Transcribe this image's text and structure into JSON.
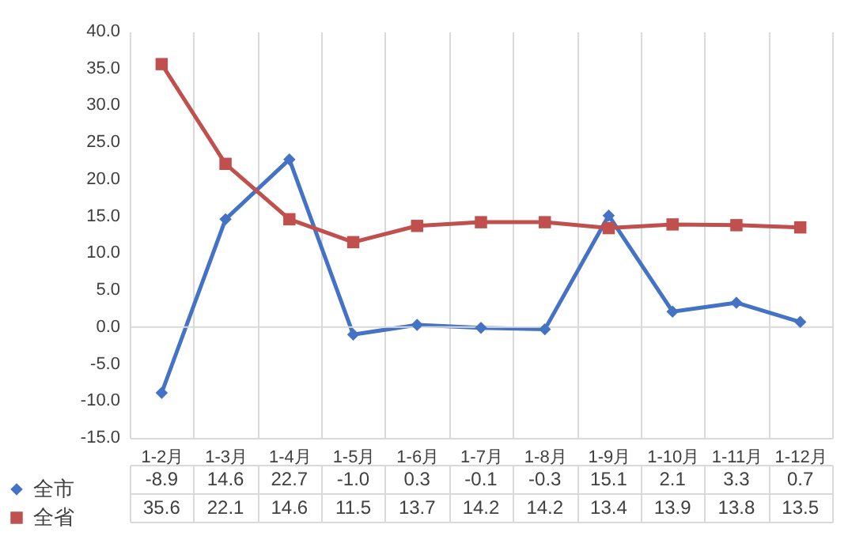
{
  "chart_data": {
    "type": "line",
    "categories": [
      "1-2月",
      "1-3月",
      "1-4月",
      "1-5月",
      "1-6月",
      "1-7月",
      "1-8月",
      "1-9月",
      "1-10月",
      "1-11月",
      "1-12月"
    ],
    "series": [
      {
        "name": "全市",
        "color": "#4472c4",
        "marker": "diamond",
        "values": [
          -8.9,
          14.6,
          22.7,
          -1.0,
          0.3,
          -0.1,
          -0.3,
          15.1,
          2.1,
          3.3,
          0.7
        ],
        "value_labels": [
          "-8.9",
          "14.6",
          "22.7",
          "-1.0",
          "0.3",
          "-0.1",
          "-0.3",
          "15.1",
          "2.1",
          "3.3",
          "0.7"
        ]
      },
      {
        "name": "全省",
        "color": "#c0504d",
        "marker": "square",
        "values": [
          35.6,
          22.1,
          14.6,
          11.5,
          13.7,
          14.2,
          14.2,
          13.4,
          13.9,
          13.8,
          13.5
        ],
        "value_labels": [
          "35.6",
          "22.1",
          "14.6",
          "11.5",
          "13.7",
          "14.2",
          "14.2",
          "13.4",
          "13.9",
          "13.8",
          "13.5"
        ]
      }
    ],
    "ylim": [
      -15,
      40
    ],
    "yticks": [
      {
        "value": -15,
        "label": "-15.0"
      },
      {
        "value": -10,
        "label": "-10.0"
      },
      {
        "value": -5,
        "label": "-5.0"
      },
      {
        "value": 0,
        "label": "0.0"
      },
      {
        "value": 5,
        "label": "5.0"
      },
      {
        "value": 10,
        "label": "10.0"
      },
      {
        "value": 15,
        "label": "15.0"
      },
      {
        "value": 20,
        "label": "20.0"
      },
      {
        "value": 25,
        "label": "25.0"
      },
      {
        "value": 30,
        "label": "30.0"
      },
      {
        "value": 35,
        "label": "35.0"
      },
      {
        "value": 40,
        "label": "40.0"
      }
    ],
    "ref_lines": [
      {
        "axis": "y",
        "value": 0,
        "color": "#d9d9d9"
      }
    ],
    "grid": "x",
    "legend": "bottom left",
    "line_style": "solid"
  }
}
